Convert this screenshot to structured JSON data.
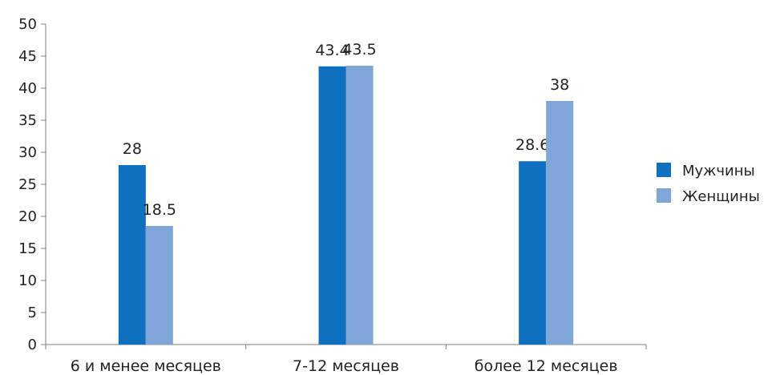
{
  "chart_data": {
    "type": "bar",
    "categories": [
      "6 и менее месяцев",
      "7-12 месяцев",
      "более 12 месяцев"
    ],
    "series": [
      {
        "name": "Мужчины",
        "values": [
          28,
          43.4,
          28.6
        ],
        "labels": [
          "28",
          "43.4",
          "28.6"
        ],
        "color": "#0f6fc0"
      },
      {
        "name": "Женщины",
        "values": [
          18.5,
          43.5,
          38
        ],
        "labels": [
          "18.5",
          "43.5",
          "38"
        ],
        "color": "#7ea7d8"
      }
    ],
    "ylim": [
      0,
      50
    ],
    "yticks": [
      0,
      5,
      10,
      15,
      20,
      25,
      30,
      35,
      40,
      45,
      50
    ],
    "grid": false,
    "legend_position": "right",
    "title": "",
    "xlabel": "",
    "ylabel": ""
  }
}
